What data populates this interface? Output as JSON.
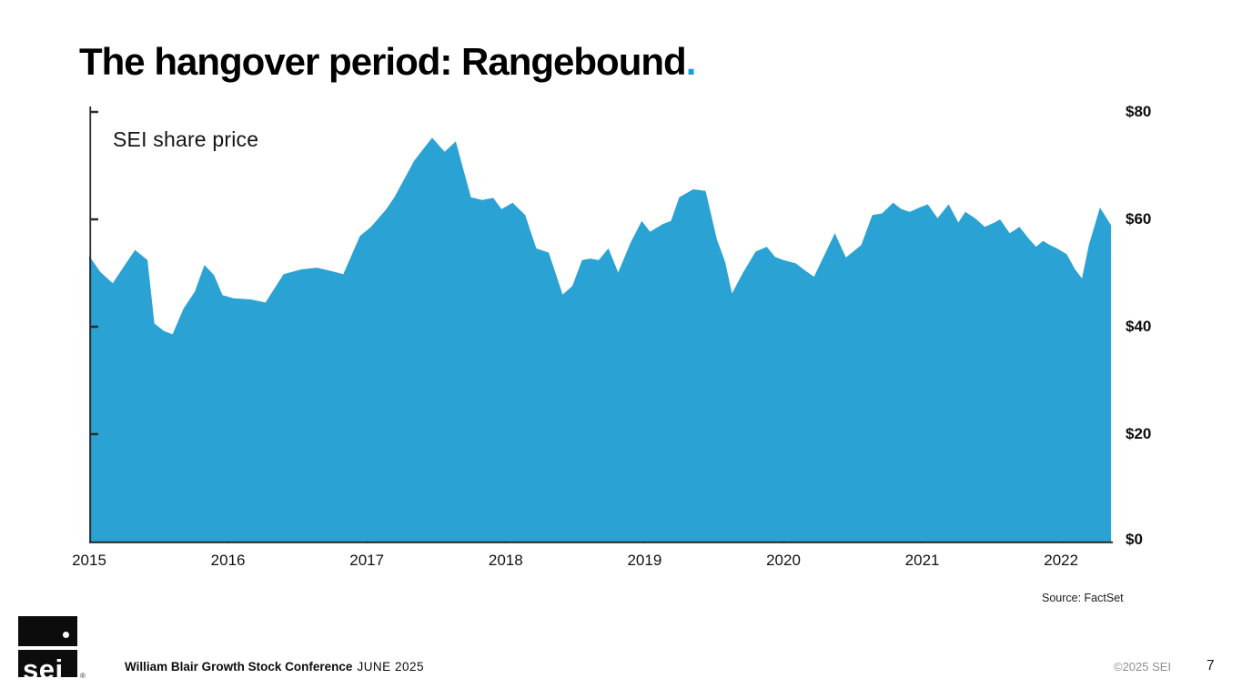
{
  "slide": {
    "title": "The hangover period: Rangebound",
    "title_period": ".",
    "source": "Source: FactSet",
    "footer": {
      "conference": "William Blair Growth Stock Conference",
      "date": "JUNE 2025",
      "copyright": "©2025 SEI",
      "page_number": "7",
      "logo_text": "sei",
      "logo_reg": "®"
    }
  },
  "colors": {
    "area": "#2BA2D4",
    "accent": "#1B9DD9",
    "axis": "#2b2b2b"
  },
  "chart_data": {
    "type": "area",
    "title": "SEI share price",
    "series_name": "SEI share price",
    "xlabel": "",
    "ylabel": "",
    "x_axis": {
      "range": [
        2015,
        2022.4
      ],
      "ticks": [
        {
          "value": 2015,
          "label": "2015"
        },
        {
          "value": 2016,
          "label": "2016"
        },
        {
          "value": 2017,
          "label": "2017"
        },
        {
          "value": 2018,
          "label": "2018"
        },
        {
          "value": 2019,
          "label": "2019"
        },
        {
          "value": 2020,
          "label": "2020"
        },
        {
          "value": 2021,
          "label": "2021"
        },
        {
          "value": 2022,
          "label": "2022"
        }
      ]
    },
    "y_axis": {
      "range": [
        0,
        80
      ],
      "ticks": [
        {
          "value": 80,
          "label": "$80"
        },
        {
          "value": 60,
          "label": "$60"
        },
        {
          "value": 40,
          "label": "$40"
        },
        {
          "value": 20,
          "label": "$20"
        },
        {
          "value": 0,
          "label": "$0"
        }
      ]
    },
    "points": [
      [
        2015.0,
        53.2
      ],
      [
        2015.08,
        50.2
      ],
      [
        2015.17,
        48.1
      ],
      [
        2015.25,
        51.2
      ],
      [
        2015.33,
        54.3
      ],
      [
        2015.42,
        52.4
      ],
      [
        2015.47,
        40.6
      ],
      [
        2015.54,
        39.2
      ],
      [
        2015.6,
        38.6
      ],
      [
        2015.68,
        43.4
      ],
      [
        2015.76,
        46.5
      ],
      [
        2015.83,
        51.5
      ],
      [
        2015.9,
        49.6
      ],
      [
        2015.96,
        45.9
      ],
      [
        2016.04,
        45.3
      ],
      [
        2016.16,
        45.1
      ],
      [
        2016.27,
        44.5
      ],
      [
        2016.4,
        49.8
      ],
      [
        2016.53,
        50.7
      ],
      [
        2016.64,
        51.0
      ],
      [
        2016.74,
        50.4
      ],
      [
        2016.83,
        49.8
      ],
      [
        2016.95,
        56.9
      ],
      [
        2017.03,
        58.6
      ],
      [
        2017.14,
        61.9
      ],
      [
        2017.2,
        64.2
      ],
      [
        2017.34,
        70.9
      ],
      [
        2017.47,
        75.2
      ],
      [
        2017.56,
        72.6
      ],
      [
        2017.64,
        74.5
      ],
      [
        2017.75,
        64.1
      ],
      [
        2017.83,
        63.6
      ],
      [
        2017.91,
        64.0
      ],
      [
        2017.97,
        61.9
      ],
      [
        2018.05,
        63.1
      ],
      [
        2018.14,
        60.8
      ],
      [
        2018.22,
        54.6
      ],
      [
        2018.31,
        53.8
      ],
      [
        2018.41,
        46.0
      ],
      [
        2018.48,
        47.6
      ],
      [
        2018.55,
        52.4
      ],
      [
        2018.61,
        52.7
      ],
      [
        2018.67,
        52.4
      ],
      [
        2018.74,
        54.6
      ],
      [
        2018.81,
        50.1
      ],
      [
        2018.9,
        55.7
      ],
      [
        2018.98,
        59.7
      ],
      [
        2019.04,
        57.7
      ],
      [
        2019.13,
        59.1
      ],
      [
        2019.19,
        59.7
      ],
      [
        2019.25,
        64.1
      ],
      [
        2019.35,
        65.6
      ],
      [
        2019.44,
        65.3
      ],
      [
        2019.52,
        56.3
      ],
      [
        2019.58,
        52.1
      ],
      [
        2019.63,
        46.2
      ],
      [
        2019.71,
        50.1
      ],
      [
        2019.8,
        54.0
      ],
      [
        2019.88,
        54.9
      ],
      [
        2019.94,
        53.0
      ],
      [
        2020.0,
        52.4
      ],
      [
        2020.09,
        51.8
      ],
      [
        2020.16,
        50.4
      ],
      [
        2020.22,
        49.3
      ],
      [
        2020.37,
        57.4
      ],
      [
        2020.45,
        52.9
      ],
      [
        2020.56,
        55.2
      ],
      [
        2020.64,
        60.8
      ],
      [
        2020.71,
        61.1
      ],
      [
        2020.79,
        63.1
      ],
      [
        2020.85,
        61.9
      ],
      [
        2020.91,
        61.4
      ],
      [
        2020.98,
        62.2
      ],
      [
        2021.04,
        62.8
      ],
      [
        2021.11,
        60.2
      ],
      [
        2021.19,
        62.8
      ],
      [
        2021.26,
        59.4
      ],
      [
        2021.31,
        61.4
      ],
      [
        2021.38,
        60.2
      ],
      [
        2021.45,
        58.6
      ],
      [
        2021.52,
        59.4
      ],
      [
        2021.56,
        60.0
      ],
      [
        2021.63,
        57.4
      ],
      [
        2021.7,
        58.6
      ],
      [
        2021.77,
        56.3
      ],
      [
        2021.82,
        54.9
      ],
      [
        2021.87,
        56.0
      ],
      [
        2021.92,
        55.2
      ],
      [
        2021.97,
        54.6
      ],
      [
        2022.04,
        53.5
      ],
      [
        2022.1,
        50.7
      ],
      [
        2022.15,
        49.0
      ],
      [
        2022.2,
        55.2
      ],
      [
        2022.28,
        62.2
      ],
      [
        2022.36,
        58.9
      ]
    ]
  }
}
